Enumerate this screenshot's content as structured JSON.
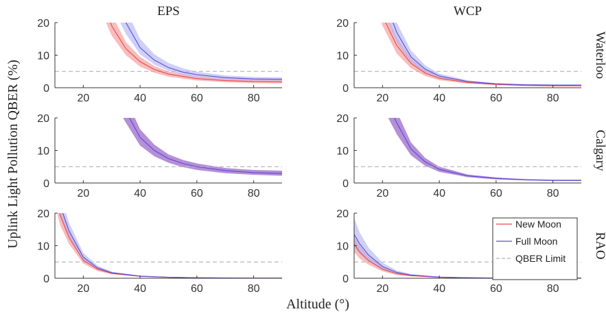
{
  "figure": {
    "ylabel": "Uplink Light Pollution QBER (%)",
    "xlabel": "Altitude (°)"
  },
  "colors": {
    "new_moon": "#e8474b",
    "new_moon_band": "#f6a7a7",
    "full_moon": "#5a4ad6",
    "full_moon_band": "#aeb0f4",
    "overlap_band": "#b58fd7",
    "qber_limit": "#b8b8b8",
    "axis": "#333333"
  },
  "legend": {
    "items": [
      {
        "label": "New Moon",
        "color": "#e8474b",
        "style": "solid"
      },
      {
        "label": "Full Moon",
        "color": "#5a4ad6",
        "style": "solid"
      },
      {
        "label": "QBER Limit",
        "color": "#b8b8b8",
        "style": "dashed"
      }
    ]
  },
  "chart_data": [
    {
      "type": "line",
      "column_title": "EPS",
      "row_label": "Waterloo",
      "xlim": [
        10,
        90
      ],
      "ylim": [
        0,
        20
      ],
      "xticks": [
        20,
        40,
        60,
        80
      ],
      "yticks": [
        0,
        10,
        20
      ],
      "grid": false,
      "qber_limit": 5,
      "series": [
        {
          "key": "new_moon",
          "x": [
            28,
            30,
            35,
            40,
            45,
            50,
            60,
            70,
            80,
            90
          ],
          "values": [
            24.0,
            19.0,
            12.0,
            8.0,
            5.6,
            4.2,
            2.8,
            2.2,
            1.9,
            1.8
          ],
          "lower": [
            20.0,
            16.0,
            10.0,
            6.5,
            4.6,
            3.4,
            2.2,
            1.7,
            1.4,
            1.3
          ],
          "upper": [
            28.0,
            22.5,
            14.0,
            9.5,
            6.7,
            5.0,
            3.5,
            2.8,
            2.5,
            2.4
          ]
        },
        {
          "key": "full_moon",
          "x": [
            33,
            35,
            40,
            45,
            50,
            55,
            60,
            70,
            80,
            90
          ],
          "values": [
            24.0,
            20.0,
            12.3,
            8.5,
            6.2,
            4.8,
            4.0,
            3.1,
            2.7,
            2.6
          ],
          "lower": [
            20.0,
            16.5,
            10.3,
            7.1,
            5.2,
            4.0,
            3.3,
            2.5,
            2.2,
            2.1
          ],
          "upper": [
            28.0,
            24.0,
            15.0,
            10.3,
            7.6,
            6.0,
            4.9,
            3.8,
            3.3,
            3.2
          ]
        }
      ]
    },
    {
      "type": "line",
      "column_title": "WCP",
      "row_label": "Waterloo",
      "xlim": [
        10,
        90
      ],
      "ylim": [
        0,
        20
      ],
      "xticks": [
        20,
        40,
        60,
        80
      ],
      "yticks": [
        0,
        10,
        20
      ],
      "grid": false,
      "qber_limit": 5,
      "series": [
        {
          "key": "new_moon",
          "x": [
            18,
            20,
            25,
            30,
            35,
            40,
            50,
            60,
            70,
            80,
            90
          ],
          "values": [
            28.0,
            22.0,
            13.0,
            7.5,
            4.5,
            2.9,
            1.6,
            1.0,
            0.7,
            0.6,
            0.6
          ],
          "lower": [
            24.0,
            19.0,
            10.5,
            6.0,
            3.6,
            2.3,
            1.3,
            0.8,
            0.6,
            0.5,
            0.5
          ],
          "upper": [
            32.0,
            25.0,
            15.5,
            9.0,
            5.4,
            3.5,
            1.9,
            1.2,
            0.9,
            0.8,
            0.8
          ]
        },
        {
          "key": "full_moon",
          "x": [
            20,
            22,
            25,
            30,
            35,
            40,
            50,
            60,
            70,
            80,
            90
          ],
          "values": [
            28.0,
            24.0,
            17.0,
            9.5,
            5.7,
            3.6,
            1.9,
            1.2,
            0.9,
            0.8,
            0.8
          ],
          "lower": [
            24.0,
            20.0,
            14.0,
            7.8,
            4.7,
            3.0,
            1.6,
            1.0,
            0.7,
            0.6,
            0.6
          ],
          "upper": [
            32.0,
            28.0,
            20.0,
            11.5,
            6.9,
            4.3,
            2.3,
            1.4,
            1.1,
            1.0,
            1.0
          ]
        }
      ]
    },
    {
      "type": "line",
      "column_title": "EPS",
      "row_label": "Calgary",
      "xlim": [
        10,
        90
      ],
      "ylim": [
        0,
        20
      ],
      "xticks": [
        20,
        40,
        60,
        80
      ],
      "yticks": [
        0,
        10,
        20
      ],
      "grid": false,
      "qber_limit": 5,
      "series": [
        {
          "key": "full_moon",
          "x": [
            34,
            35,
            40,
            45,
            50,
            55,
            60,
            70,
            80,
            90
          ],
          "values": [
            24.0,
            22.0,
            14.0,
            10.0,
            7.5,
            6.0,
            5.0,
            3.8,
            3.2,
            2.9
          ],
          "lower": [
            20.0,
            18.5,
            11.5,
            8.2,
            6.2,
            4.9,
            4.0,
            3.0,
            2.5,
            2.2
          ],
          "upper": [
            28.0,
            26.0,
            16.5,
            11.8,
            8.8,
            7.1,
            6.0,
            4.6,
            4.0,
            3.8
          ]
        }
      ]
    },
    {
      "type": "line",
      "column_title": "WCP",
      "row_label": "Calgary",
      "xlim": [
        10,
        90
      ],
      "ylim": [
        0,
        20
      ],
      "xticks": [
        20,
        40,
        60,
        80
      ],
      "yticks": [
        0,
        10,
        20
      ],
      "grid": false,
      "qber_limit": 5,
      "series": [
        {
          "key": "full_moon",
          "x": [
            22,
            25,
            30,
            35,
            40,
            50,
            60,
            70,
            80,
            90
          ],
          "values": [
            24.0,
            18.5,
            10.5,
            6.5,
            4.2,
            2.2,
            1.4,
            1.0,
            0.8,
            0.8
          ],
          "lower": [
            20.0,
            15.0,
            8.5,
            5.3,
            3.4,
            1.8,
            1.1,
            0.8,
            0.6,
            0.6
          ],
          "upper": [
            28.0,
            22.0,
            12.5,
            7.7,
            5.0,
            2.6,
            1.7,
            1.2,
            1.0,
            1.0
          ]
        }
      ]
    },
    {
      "type": "line",
      "column_title": "EPS",
      "row_label": "RAO",
      "xlim": [
        10,
        90
      ],
      "ylim": [
        0,
        20
      ],
      "xticks": [
        20,
        40,
        60,
        80
      ],
      "yticks": [
        0,
        10,
        20
      ],
      "grid": false,
      "qber_limit": 5,
      "series": [
        {
          "key": "new_moon",
          "x": [
            11,
            12,
            15,
            20,
            25,
            30,
            40,
            50,
            60,
            70,
            80,
            90
          ],
          "values": [
            22.0,
            19.0,
            12.5,
            5.5,
            2.8,
            1.5,
            0.6,
            0.3,
            0.15,
            0.1,
            0.05,
            0.05
          ],
          "lower": [
            19.0,
            16.0,
            10.5,
            4.5,
            2.2,
            1.2,
            0.5,
            0.2,
            0.1,
            0.05,
            0.03,
            0.02
          ],
          "upper": [
            25.0,
            22.0,
            14.5,
            6.5,
            3.4,
            1.9,
            0.8,
            0.4,
            0.2,
            0.15,
            0.1,
            0.08
          ]
        },
        {
          "key": "full_moon",
          "x": [
            12,
            13,
            15,
            20,
            25,
            30,
            40,
            50,
            60,
            70,
            80,
            90
          ],
          "values": [
            22.0,
            19.5,
            14.5,
            6.5,
            3.2,
            1.7,
            0.65,
            0.3,
            0.15,
            0.1,
            0.05,
            0.05
          ],
          "lower": [
            19.0,
            16.5,
            12.5,
            5.5,
            2.6,
            1.4,
            0.5,
            0.2,
            0.1,
            0.05,
            0.03,
            0.02
          ],
          "upper": [
            25.0,
            22.5,
            17.0,
            7.8,
            3.9,
            2.0,
            0.8,
            0.4,
            0.2,
            0.15,
            0.1,
            0.08
          ]
        }
      ]
    },
    {
      "type": "line",
      "column_title": "WCP",
      "row_label": "RAO",
      "xlim": [
        10,
        90
      ],
      "ylim": [
        0,
        20
      ],
      "xticks": [
        20,
        40,
        60,
        80
      ],
      "yticks": [
        0,
        10,
        20
      ],
      "grid": false,
      "qber_limit": 5,
      "legend_position": "top-right",
      "series": [
        {
          "key": "new_moon",
          "x": [
            10,
            12,
            15,
            20,
            25,
            30,
            40,
            50,
            60,
            70,
            80,
            90
          ],
          "values": [
            10.5,
            8.0,
            5.5,
            2.8,
            1.4,
            0.8,
            0.3,
            0.15,
            0.08,
            0.05,
            0.04,
            0.03
          ],
          "lower": [
            8.0,
            6.0,
            4.2,
            2.1,
            1.0,
            0.6,
            0.2,
            0.1,
            0.05,
            0.03,
            0.02,
            0.02
          ],
          "upper": [
            13.0,
            10.0,
            6.9,
            3.5,
            1.8,
            1.0,
            0.4,
            0.2,
            0.1,
            0.07,
            0.05,
            0.04
          ]
        },
        {
          "key": "full_moon",
          "x": [
            10,
            12,
            15,
            20,
            25,
            30,
            40,
            50,
            60,
            70,
            80,
            90
          ],
          "values": [
            13.5,
            10.5,
            7.2,
            3.6,
            1.8,
            1.0,
            0.35,
            0.15,
            0.08,
            0.05,
            0.04,
            0.03
          ],
          "lower": [
            9.5,
            7.5,
            5.2,
            2.6,
            1.3,
            0.7,
            0.25,
            0.1,
            0.05,
            0.03,
            0.02,
            0.02
          ],
          "upper": [
            18.5,
            14.0,
            9.5,
            4.8,
            2.4,
            1.3,
            0.45,
            0.2,
            0.1,
            0.07,
            0.05,
            0.04
          ]
        }
      ]
    }
  ]
}
